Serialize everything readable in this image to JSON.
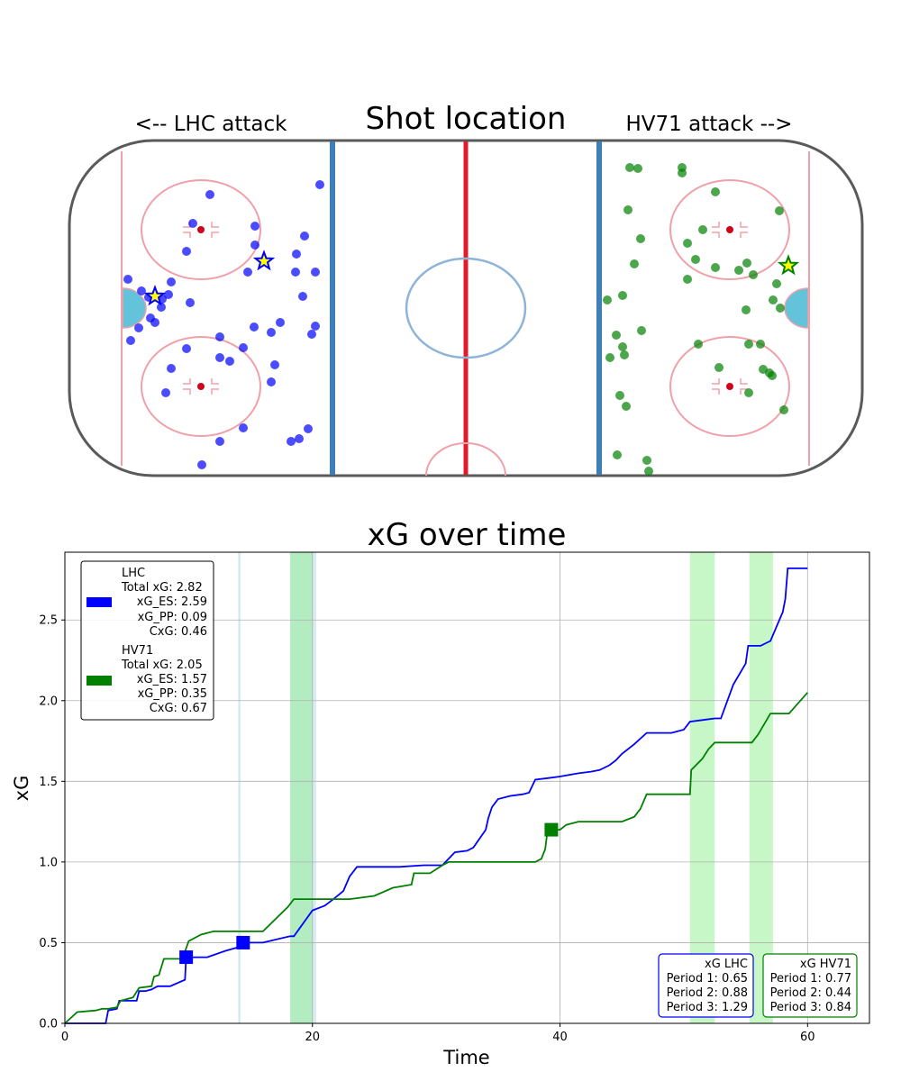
{
  "rink_chart": {
    "type": "scatter",
    "title": "Shot location",
    "left_label": "<-- LHC attack",
    "right_label": "HV71 attack -->",
    "colors": {
      "LHC": "#0000ff",
      "HV71": "#008000",
      "goal_star_fill": "#ffff00"
    },
    "series": [
      {
        "name": "LHC",
        "shots": [
          [
            233,
            216
          ],
          [
            355,
            205
          ],
          [
            214,
            248
          ],
          [
            283,
            251
          ],
          [
            338,
            262
          ],
          [
            207,
            279
          ],
          [
            283,
            272
          ],
          [
            329,
            282
          ],
          [
            275,
            302
          ],
          [
            328,
            302
          ],
          [
            350,
            302
          ],
          [
            142,
            310
          ],
          [
            190,
            313
          ],
          [
            157,
            323
          ],
          [
            180,
            332
          ],
          [
            211,
            336
          ],
          [
            336,
            329
          ],
          [
            179,
            341
          ],
          [
            167,
            353
          ],
          [
            172,
            358
          ],
          [
            154,
            364
          ],
          [
            282,
            363
          ],
          [
            311,
            358
          ],
          [
            301,
            369
          ],
          [
            350,
            362
          ],
          [
            346,
            371
          ],
          [
            145,
            378
          ],
          [
            244,
            374
          ],
          [
            207,
            387
          ],
          [
            270,
            386
          ],
          [
            244,
            397
          ],
          [
            255,
            401
          ],
          [
            190,
            409
          ],
          [
            305,
            405
          ],
          [
            184,
            436
          ],
          [
            301,
            424
          ],
          [
            270,
            475
          ],
          [
            342,
            476
          ],
          [
            244,
            490
          ],
          [
            332,
            487
          ],
          [
            323,
            490
          ],
          [
            224,
            516
          ],
          [
            165,
            330
          ],
          [
            187,
            327
          ]
        ],
        "goals": [
          [
            293,
            290
          ],
          [
            172,
            329
          ]
        ]
      },
      {
        "name": "HV71",
        "shots": [
          [
            699,
            186
          ],
          [
            708,
            187
          ],
          [
            757,
            186
          ],
          [
            757,
            192
          ],
          [
            794,
            213
          ],
          [
            697,
            233
          ],
          [
            865,
            234
          ],
          [
            711,
            265
          ],
          [
            763,
            270
          ],
          [
            780,
            255
          ],
          [
            772,
            288
          ],
          [
            704,
            293
          ],
          [
            794,
            297
          ],
          [
            829,
            292
          ],
          [
            820,
            300
          ],
          [
            836,
            305
          ],
          [
            763,
            310
          ],
          [
            862,
            315
          ],
          [
            674,
            333
          ],
          [
            691,
            328
          ],
          [
            858,
            333
          ],
          [
            866,
            342
          ],
          [
            828,
            344
          ],
          [
            712,
            367
          ],
          [
            684,
            372
          ],
          [
            691,
            385
          ],
          [
            775,
            382
          ],
          [
            831,
            382
          ],
          [
            844,
            382
          ],
          [
            677,
            397
          ],
          [
            693,
            394
          ],
          [
            798,
            408
          ],
          [
            847,
            410
          ],
          [
            854,
            414
          ],
          [
            857,
            417
          ],
          [
            688,
            439
          ],
          [
            695,
            451
          ],
          [
            831,
            436
          ],
          [
            870,
            455
          ],
          [
            685,
            505
          ],
          [
            718,
            511
          ],
          [
            720,
            523
          ]
        ],
        "goals": [
          [
            875,
            295
          ]
        ]
      }
    ]
  },
  "chart_data": {
    "type": "line",
    "title": "xG over time",
    "xlabel": "Time",
    "ylabel": "xG",
    "xlim": [
      0,
      65
    ],
    "ylim": [
      0,
      2.92
    ],
    "xticks": [
      0,
      20,
      40,
      60
    ],
    "yticks": [
      0.0,
      0.5,
      1.0,
      1.5,
      2.0,
      2.5
    ],
    "grid": true,
    "legend_position": "top-left",
    "legend": [
      {
        "name": "LHC",
        "color": "#0000ff",
        "lines": [
          "LHC",
          "Total xG: 2.82",
          "xG_ES: 2.59",
          "xG_PP: 0.09",
          "CxG: 0.46"
        ]
      },
      {
        "name": "HV71",
        "color": "#008000",
        "lines": [
          "HV71",
          "Total xG: 2.05",
          "xG_ES: 1.57",
          "xG_PP: 0.35",
          "CxG: 0.67"
        ]
      }
    ],
    "period_boxes": [
      {
        "team": "LHC",
        "color": "#0000ff",
        "lines": [
          "xG LHC",
          "Period 1: 0.65",
          "Period 2: 0.88",
          "Period 3: 1.29"
        ]
      },
      {
        "team": "HV71",
        "color": "#008000",
        "lines": [
          "xG HV71",
          "Period 1: 0.77",
          "Period 2: 0.44",
          "Period 3: 0.84"
        ]
      }
    ],
    "powerplays": [
      {
        "team": "LHC",
        "start": 14.0,
        "end": 14.2,
        "color": "#add8e6"
      },
      {
        "team": "LHC",
        "start": 18.2,
        "end": 20.3,
        "color": "#add8e6"
      },
      {
        "team": "HV71",
        "start": 18.2,
        "end": 20.0,
        "color": "#90ee90"
      },
      {
        "team": "HV71",
        "start": 50.5,
        "end": 52.5,
        "color": "#90ee90"
      },
      {
        "team": "HV71",
        "start": 55.3,
        "end": 57.2,
        "color": "#90ee90"
      }
    ],
    "series": [
      {
        "name": "LHC",
        "color": "#0000ff",
        "x": [
          0,
          3.3,
          3.5,
          4.2,
          4.4,
          4.6,
          5.8,
          6.0,
          6.5,
          7.0,
          7.5,
          8.5,
          9.7,
          9.8,
          11.5,
          13.0,
          14.4,
          14.5,
          16.0,
          18.2,
          18.5,
          20.0,
          21.0,
          21.7,
          22.5,
          23.0,
          23.6,
          24.0,
          27.0,
          29.0,
          30.5,
          31.5,
          32.5,
          33.0,
          34.0,
          34.2,
          34.5,
          35.0,
          36.0,
          37.0,
          37.5,
          38.0,
          39.0,
          40.0,
          41.5,
          42.5,
          43.2,
          44.0,
          44.5,
          45.0,
          46.0,
          47.0,
          48.0,
          49.0,
          49.5,
          50.0,
          50.5,
          51.5,
          52.5,
          53.0,
          54.0,
          55.0,
          55.2,
          56.0,
          56.2,
          57.0,
          58.0,
          58.2,
          58.4,
          60.0
        ],
        "y": [
          0,
          0,
          0.08,
          0.09,
          0.14,
          0.14,
          0.14,
          0.2,
          0.2,
          0.21,
          0.23,
          0.23,
          0.27,
          0.41,
          0.41,
          0.45,
          0.48,
          0.5,
          0.5,
          0.54,
          0.54,
          0.7,
          0.73,
          0.77,
          0.82,
          0.91,
          0.97,
          0.97,
          0.97,
          0.98,
          0.98,
          1.06,
          1.07,
          1.09,
          1.2,
          1.27,
          1.34,
          1.39,
          1.41,
          1.42,
          1.43,
          1.51,
          1.52,
          1.53,
          1.55,
          1.56,
          1.57,
          1.6,
          1.63,
          1.67,
          1.73,
          1.8,
          1.8,
          1.8,
          1.81,
          1.82,
          1.87,
          1.88,
          1.89,
          1.89,
          2.1,
          2.23,
          2.34,
          2.34,
          2.34,
          2.37,
          2.55,
          2.63,
          2.82,
          2.82
        ],
        "goals": [
          [
            9.8,
            0.41
          ],
          [
            14.4,
            0.5
          ]
        ]
      },
      {
        "name": "HV71",
        "color": "#008000",
        "x": [
          0,
          1.0,
          2.5,
          3.0,
          3.5,
          4.2,
          4.5,
          5.5,
          6.0,
          7.0,
          7.2,
          7.6,
          8.0,
          9.5,
          10.0,
          11.0,
          12.0,
          16.0,
          18.0,
          18.5,
          20.0,
          21.0,
          23.0,
          25.0,
          26.5,
          28.0,
          28.2,
          29.5,
          30.5,
          31.0,
          32.0,
          35.0,
          38.0,
          38.5,
          38.8,
          39.0,
          39.5,
          40.0,
          40.5,
          41.0,
          41.5,
          42.0,
          44.0,
          45.0,
          46.0,
          46.5,
          47.0,
          50.5,
          50.6,
          51.5,
          52.0,
          52.5,
          55.5,
          56.0,
          57.0,
          57.5,
          58.5,
          60.0
        ],
        "y": [
          0,
          0.07,
          0.08,
          0.09,
          0.09,
          0.1,
          0.14,
          0.16,
          0.22,
          0.23,
          0.29,
          0.3,
          0.4,
          0.4,
          0.51,
          0.55,
          0.57,
          0.57,
          0.72,
          0.77,
          0.77,
          0.77,
          0.77,
          0.79,
          0.84,
          0.86,
          0.93,
          0.93,
          0.98,
          1.0,
          1.0,
          1.0,
          1.0,
          1.02,
          1.08,
          1.2,
          1.2,
          1.2,
          1.23,
          1.24,
          1.25,
          1.25,
          1.25,
          1.25,
          1.28,
          1.33,
          1.42,
          1.42,
          1.57,
          1.64,
          1.7,
          1.74,
          1.74,
          1.79,
          1.92,
          1.92,
          1.92,
          2.05
        ],
        "goals": [
          [
            39.3,
            1.2
          ]
        ]
      }
    ]
  }
}
